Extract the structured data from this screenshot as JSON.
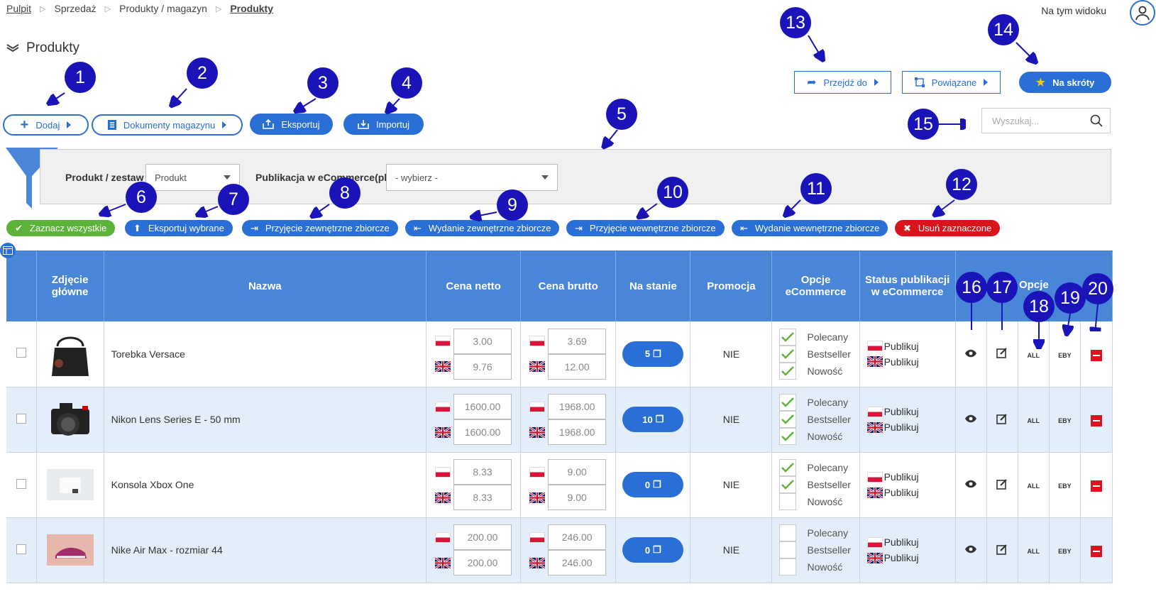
{
  "breadcrumb": [
    "Pulpit",
    "Sprzedaż",
    "Produkty / magazyn",
    "Produkty"
  ],
  "view_label": "Na tym widoku",
  "page_title": "Produkty",
  "toolbar": {
    "add": "Dodaj",
    "docs": "Dokumenty magazynu",
    "export": "Eksportuj",
    "import": "Importuj"
  },
  "right_toolbar": {
    "goto": "Przejdź do",
    "related": "Powiązane",
    "shortcuts": "Na skróty"
  },
  "search": {
    "placeholder": "Wyszukaj..."
  },
  "filter": {
    "product_label": "Produkt / zestaw",
    "product_value": "Produkt",
    "pub_label": "Publikacja w eCommerce(pl)",
    "pub_value": "- wybierz -"
  },
  "bulk": {
    "select_all": "Zaznacz wszystkie",
    "export_sel": "Eksportuj wybrane",
    "ext_in": "Przyjęcie zewnętrzne zbiorcze",
    "ext_out": "Wydanie zewnętrzne zbiorcze",
    "int_in": "Przyjęcie wewnętrzne zbiorcze",
    "int_out": "Wydanie wewnętrzne zbiorcze",
    "delete_sel": "Usuń zaznaczone"
  },
  "columns": {
    "photo": "Zdjęcie główne",
    "name": "Nazwa",
    "net": "Cena netto",
    "gross": "Cena brutto",
    "stock": "Na stanie",
    "promo": "Promocja",
    "ecom": "Opcje eCommerce",
    "status": "Status publikacji w eCommerce",
    "options": "Opcje"
  },
  "ecom_labels": [
    "Polecany",
    "Bestseller",
    "Nowość"
  ],
  "publish_label": "Publikuj",
  "opt_all": "ALL",
  "opt_eby": "EBY",
  "rows": [
    {
      "name": "Torebka Versace",
      "net_pl": "3.00",
      "net_en": "9.76",
      "gross_pl": "3.69",
      "gross_en": "12.00",
      "stock": "5",
      "promo": "NIE"
    },
    {
      "name": "Nikon Lens Series E - 50 mm",
      "net_pl": "1600.00",
      "net_en": "1600.00",
      "gross_pl": "1968.00",
      "gross_en": "1968.00",
      "stock": "10",
      "promo": "NIE"
    },
    {
      "name": "Konsola Xbox One",
      "net_pl": "8.33",
      "net_en": "8.33",
      "gross_pl": "9.00",
      "gross_en": "9.00",
      "stock": "0",
      "promo": "NIE"
    },
    {
      "name": "Nike Air Max - rozmiar 44",
      "net_pl": "200.00",
      "net_en": "200.00",
      "gross_pl": "246.00",
      "gross_en": "246.00",
      "stock": "0",
      "promo": "NIE"
    }
  ],
  "callouts": [
    "1",
    "2",
    "3",
    "4",
    "5",
    "6",
    "7",
    "8",
    "9",
    "10",
    "11",
    "12",
    "13",
    "14",
    "15",
    "16",
    "17",
    "18",
    "19",
    "20"
  ],
  "colors": {
    "accent": "#2a6fd6",
    "header": "#4a86d8",
    "callout": "#1a14b8",
    "success": "#5db33a",
    "danger": "#d9141c"
  }
}
